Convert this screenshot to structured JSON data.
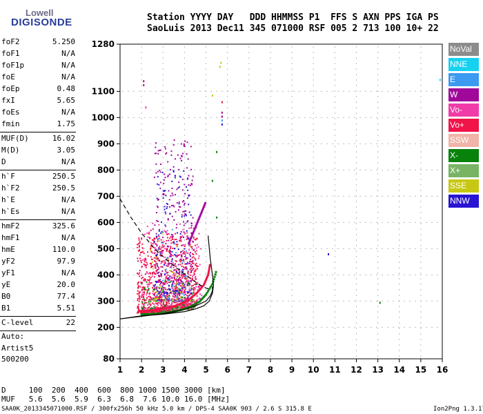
{
  "logo": {
    "line1": "Lowell",
    "line2": "DIGISONDE"
  },
  "header": {
    "labels": "Station YYYY DAY   DDD HHMMSS P1  FFS S AXN PPS IGA PS",
    "values": "SaoLuis 2013 Dec11 345 071000 RSF 005 2 713 100 10+ 22"
  },
  "params": [
    {
      "name": "foF2",
      "value": "5.250"
    },
    {
      "name": "foF1",
      "value": "N/A"
    },
    {
      "name": "foF1p",
      "value": "N/A"
    },
    {
      "name": "foE",
      "value": "N/A"
    },
    {
      "name": "foEp",
      "value": "0.48"
    },
    {
      "name": "fxI",
      "value": "5.65"
    },
    {
      "name": "foEs",
      "value": "N/A"
    },
    {
      "name": "fmin",
      "value": "1.75"
    },
    {
      "name": "MUF(D)",
      "value": "16.02"
    },
    {
      "name": "M(D)",
      "value": "3.05"
    },
    {
      "name": "D",
      "value": "N/A"
    },
    {
      "name": "h`F",
      "value": "250.5"
    },
    {
      "name": "h`F2",
      "value": "250.5"
    },
    {
      "name": "h`E",
      "value": "N/A"
    },
    {
      "name": "h`Es",
      "value": "N/A"
    },
    {
      "name": "hmF2",
      "value": "325.6"
    },
    {
      "name": "hmF1",
      "value": "N/A"
    },
    {
      "name": "hmE",
      "value": "110.0"
    },
    {
      "name": "yF2",
      "value": "97.9"
    },
    {
      "name": "yF1",
      "value": "N/A"
    },
    {
      "name": "yE",
      "value": "20.0"
    },
    {
      "name": "B0",
      "value": "77.4"
    },
    {
      "name": "B1",
      "value": "5.51"
    },
    {
      "name": "C-level",
      "value": "22"
    }
  ],
  "autoscaling": {
    "line1": "Auto:",
    "line2": "Artist5",
    "line3": "500200"
  },
  "legend": [
    {
      "label": "NoVal",
      "color": "#8c8c8c"
    },
    {
      "label": "NNE",
      "color": "#16d2f0"
    },
    {
      "label": "E",
      "color": "#3c9af0"
    },
    {
      "label": "W",
      "color": "#a0089a"
    },
    {
      "label": "Vo-",
      "color": "#f03ca8"
    },
    {
      "label": "Vo+",
      "color": "#f01448"
    },
    {
      "label": "SSW",
      "color": "#f0b4a8"
    },
    {
      "label": "X-",
      "color": "#08820a"
    },
    {
      "label": "X+",
      "color": "#78b464"
    },
    {
      "label": "SSE",
      "color": "#c8c814"
    },
    {
      "label": "NNW",
      "color": "#2814d2"
    }
  ],
  "footer": {
    "d_row": "D     100  200  400  600  800 1000 1500 3000 [km]",
    "muf_row": "MUF   5.6  5.6  5.9  6.3  6.8  7.6 10.0 16.0 [MHz]",
    "file_info": "SAA0K_2013345071000.RSF / 300fx256h 50 kHz 5.0 km / DPS-4 SAA0K 903 / 2.6 S 315.8 E",
    "version": "Ion2Png 1.3.17"
  },
  "chart_data": {
    "type": "scatter",
    "title": "",
    "xlabel": "",
    "ylabel": "",
    "xlim": [
      1,
      16
    ],
    "ylim": [
      80,
      1280
    ],
    "x_ticks": [
      "1",
      "2",
      "3",
      "4",
      "5",
      "6",
      "7",
      "8",
      "9",
      "10",
      "11",
      "12",
      "13",
      "14",
      "15",
      "16"
    ],
    "y_ticks": [
      "80",
      "200",
      "300",
      "400",
      "500",
      "600",
      "700",
      "800",
      "900",
      "1000",
      "1100",
      "1280"
    ],
    "grid": true,
    "legend_placement": "right",
    "traces": {
      "vo_plus": {
        "color": "#f01448",
        "x": [
          1.9,
          2.1,
          2.4,
          2.8,
          3.2,
          3.6,
          4.0,
          4.3,
          4.6,
          4.9,
          5.1,
          5.2
        ],
        "y": [
          262,
          262,
          264,
          268,
          274,
          283,
          296,
          312,
          333,
          362,
          400,
          445
        ]
      },
      "x_minus": {
        "color": "#08820a",
        "x": [
          2.0,
          2.3,
          2.7,
          3.1,
          3.5,
          3.9,
          4.3,
          4.7,
          5.0,
          5.3,
          5.5
        ],
        "y": [
          250,
          250,
          252,
          255,
          260,
          268,
          280,
          298,
          325,
          365,
          420
        ]
      },
      "w_oblique": {
        "color": "#a0089a",
        "x": [
          4.2,
          4.4,
          4.6,
          4.8,
          5.0
        ],
        "y": [
          520,
          560,
          600,
          640,
          680
        ]
      }
    },
    "profile_solid": {
      "x": [
        1.0,
        2.0,
        3.0,
        4.0,
        4.5,
        4.9,
        5.15,
        5.3,
        5.35,
        5.3,
        5.2,
        5.1
      ],
      "y": [
        232,
        244,
        250,
        260,
        270,
        282,
        300,
        330,
        360,
        400,
        460,
        550
      ]
    },
    "profile_solid2": {
      "x": [
        1.0,
        2.0,
        3.0,
        4.0,
        4.6,
        5.0,
        5.2,
        5.3,
        5.3
      ],
      "y": [
        232,
        242,
        252,
        268,
        285,
        300,
        320,
        340,
        355
      ]
    },
    "muf_dashed": {
      "x": [
        1.0,
        1.5,
        2.0,
        2.6,
        3.2,
        3.8,
        4.3,
        4.7,
        5.0,
        5.2
      ],
      "y": [
        690,
        620,
        560,
        500,
        455,
        415,
        385,
        362,
        350,
        345
      ]
    },
    "clusters": [
      {
        "color": "#f01448",
        "x": [
          1.8,
          4.6
        ],
        "y": [
          255,
          560
        ],
        "n": 900
      },
      {
        "color": "#a0089a",
        "x": [
          2.6,
          4.4
        ],
        "y": [
          300,
          920
        ],
        "n": 380
      },
      {
        "color": "#f03ca8",
        "x": [
          2.0,
          4.8
        ],
        "y": [
          265,
          600
        ],
        "n": 280
      },
      {
        "color": "#2814d2",
        "x": [
          2.6,
          4.3
        ],
        "y": [
          330,
          800
        ],
        "n": 130
      },
      {
        "color": "#3c9af0",
        "x": [
          2.6,
          4.2
        ],
        "y": [
          300,
          600
        ],
        "n": 60
      },
      {
        "color": "#08820a",
        "x": [
          2.0,
          4.6
        ],
        "y": [
          260,
          380
        ],
        "n": 90
      },
      {
        "color": "#c8c814",
        "x": [
          2.4,
          4.5
        ],
        "y": [
          300,
          560
        ],
        "n": 40
      },
      {
        "color": "#78b464",
        "x": [
          2.3,
          4.4
        ],
        "y": [
          270,
          400
        ],
        "n": 40
      }
    ],
    "sparse_points": [
      {
        "x": 2.1,
        "y": 1140,
        "color": "#a0089a"
      },
      {
        "x": 2.1,
        "y": 1125,
        "color": "#a0089a"
      },
      {
        "x": 2.2,
        "y": 1040,
        "color": "#f03ca8"
      },
      {
        "x": 5.7,
        "y": 1210,
        "color": "#c8c814"
      },
      {
        "x": 5.65,
        "y": 1195,
        "color": "#c8c814"
      },
      {
        "x": 5.3,
        "y": 1085,
        "color": "#c8c814"
      },
      {
        "x": 5.75,
        "y": 1060,
        "color": "#f01448"
      },
      {
        "x": 5.75,
        "y": 1020,
        "color": "#a0089a"
      },
      {
        "x": 5.75,
        "y": 1005,
        "color": "#a0089a"
      },
      {
        "x": 5.75,
        "y": 990,
        "color": "#3c9af0"
      },
      {
        "x": 5.75,
        "y": 975,
        "color": "#2814d2"
      },
      {
        "x": 5.5,
        "y": 870,
        "color": "#08820a"
      },
      {
        "x": 5.3,
        "y": 760,
        "color": "#08820a"
      },
      {
        "x": 5.5,
        "y": 620,
        "color": "#08820a"
      },
      {
        "x": 10.7,
        "y": 480,
        "color": "#2814d2"
      },
      {
        "x": 13.1,
        "y": 295,
        "color": "#08820a"
      },
      {
        "x": 15.9,
        "y": 1145,
        "color": "#16d2f0"
      },
      {
        "x": 2.0,
        "y": 540,
        "color": "#f01448"
      },
      {
        "x": 1.9,
        "y": 495,
        "color": "#f01448"
      }
    ]
  }
}
